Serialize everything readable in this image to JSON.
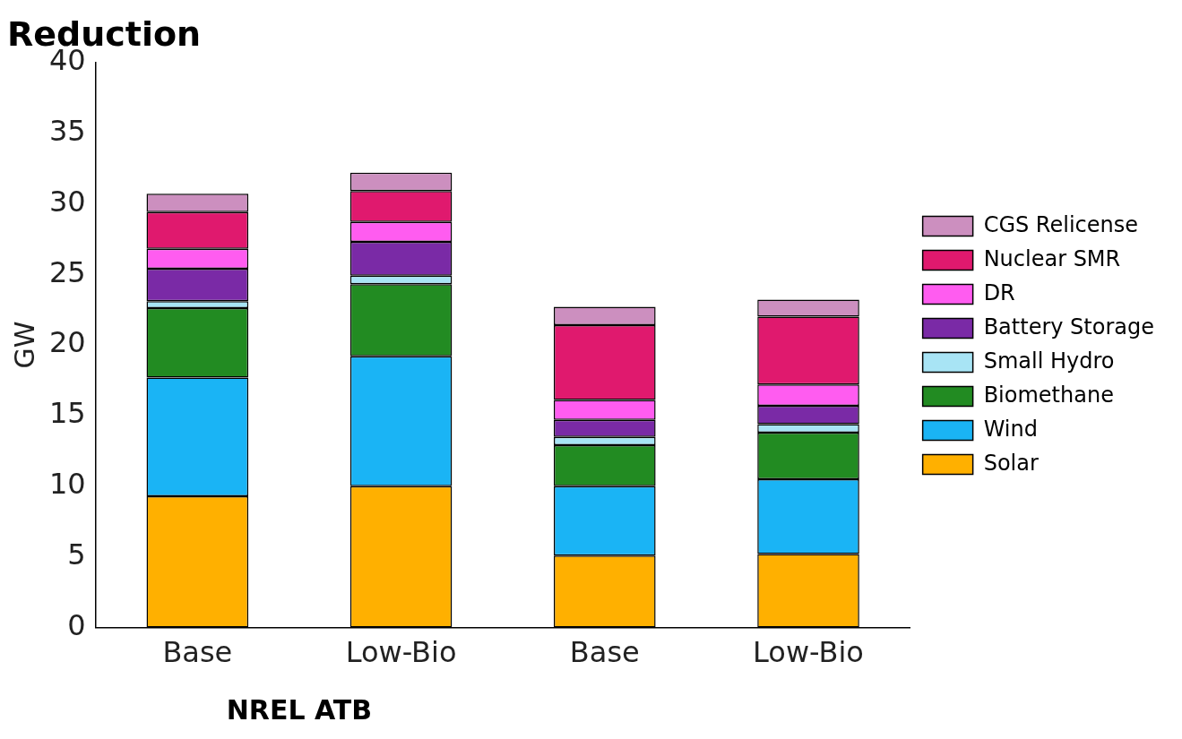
{
  "chart_data": {
    "type": "bar",
    "title": "Reduction",
    "ylabel": "GW",
    "categories": [
      "Base",
      "Low-Bio",
      "Base",
      "Low-Bio"
    ],
    "stacked": true,
    "ylim": [
      0,
      40
    ],
    "yticks": [
      0,
      5,
      10,
      15,
      20,
      25,
      30,
      35,
      40
    ],
    "grid": false,
    "legend": "right",
    "annotations": [
      "NREL ATB"
    ],
    "series": [
      {
        "name": "Solar",
        "color": "#ffb000",
        "values": [
          9.3,
          10.0,
          5.1,
          5.2
        ]
      },
      {
        "name": "Wind",
        "color": "#1ab4f5",
        "values": [
          8.4,
          9.2,
          4.9,
          5.3
        ]
      },
      {
        "name": "Biomethane",
        "color": "#228b22",
        "values": [
          4.9,
          5.1,
          2.9,
          3.3
        ]
      },
      {
        "name": "Small Hydro",
        "color": "#a8e4f5",
        "values": [
          0.5,
          0.6,
          0.6,
          0.6
        ]
      },
      {
        "name": "Battery Storage",
        "color": "#7a2aa6",
        "values": [
          2.3,
          2.4,
          1.2,
          1.3
        ]
      },
      {
        "name": "DR",
        "color": "#ff5cf0",
        "values": [
          1.4,
          1.4,
          1.4,
          1.5
        ]
      },
      {
        "name": "Nuclear SMR",
        "color": "#e0196e",
        "values": [
          2.6,
          2.2,
          5.3,
          4.8
        ]
      },
      {
        "name": "CGS Relicense",
        "color": "#cc8fbf",
        "values": [
          1.3,
          1.3,
          1.3,
          1.2
        ]
      }
    ]
  }
}
